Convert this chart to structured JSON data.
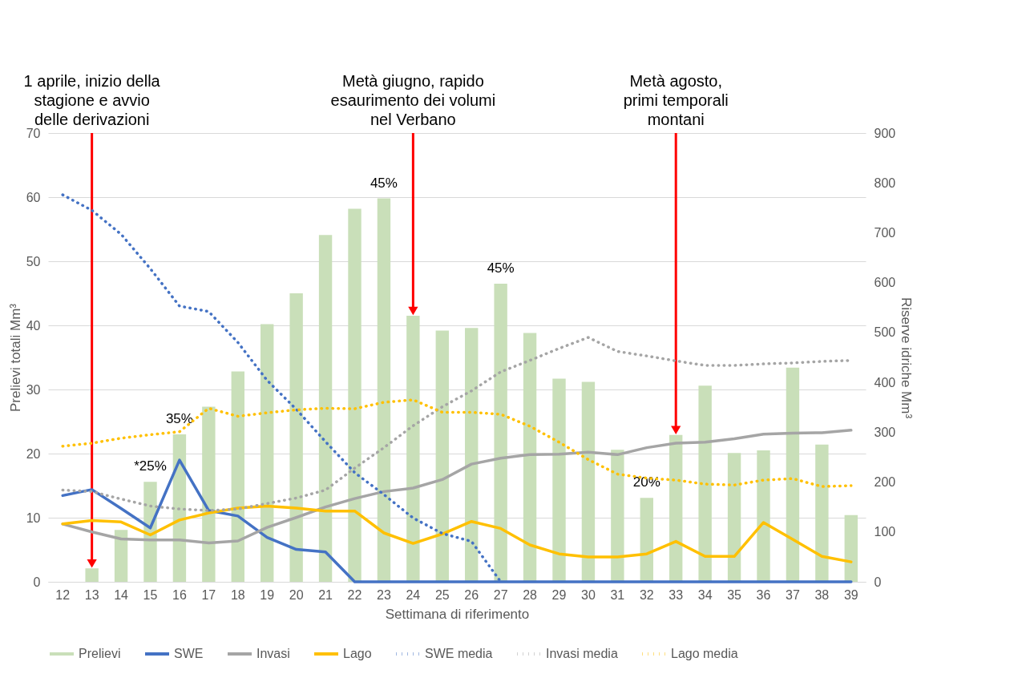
{
  "chart_data": {
    "type": "bar",
    "xlabel": "Settimana di riferimento",
    "ylabel": "Prelievi totali Mm³",
    "y2label": "Riserve idriche Mm³",
    "categories": [
      "12",
      "13",
      "14",
      "15",
      "16",
      "17",
      "18",
      "19",
      "20",
      "21",
      "22",
      "23",
      "24",
      "25",
      "26",
      "27",
      "28",
      "29",
      "30",
      "31",
      "32",
      "33",
      "34",
      "35",
      "36",
      "37",
      "38",
      "39"
    ],
    "series": [
      {
        "name": "Prelievi",
        "color": "#c9dfb9",
        "values": [
          null,
          2.1,
          8.1,
          15.6,
          23.0,
          27.3,
          32.8,
          40.2,
          45.0,
          54.1,
          58.2,
          59.8,
          41.5,
          39.2,
          39.6,
          46.5,
          38.8,
          31.7,
          31.2,
          20.6,
          13.1,
          22.9,
          30.6,
          20.1,
          20.5,
          33.4,
          21.4,
          10.4
        ]
      },
      {
        "name": "SWE",
        "type": "line",
        "axis": "y2",
        "line_style": "solid",
        "color": "#4472c4",
        "values": [
          173,
          185,
          147,
          108,
          244,
          143,
          132,
          89,
          65,
          60,
          0,
          0,
          0,
          0,
          0,
          0,
          0,
          0,
          0,
          0,
          0,
          0,
          0,
          0,
          0,
          0,
          0,
          0
        ]
      },
      {
        "name": "Invasi",
        "type": "line",
        "axis": "y2",
        "line_style": "solid",
        "color": "#a5a5a5",
        "values": [
          116,
          100,
          86,
          84,
          84,
          78,
          82,
          109,
          129,
          150,
          167,
          181,
          188,
          205,
          236,
          248,
          255,
          256,
          260,
          255,
          269,
          278,
          280,
          287,
          296,
          298,
          299,
          304
        ]
      },
      {
        "name": "Lago",
        "type": "line",
        "axis": "y2",
        "line_style": "solid",
        "color": "#ffc000",
        "values": [
          116,
          123,
          120,
          94,
          124,
          138,
          148,
          152,
          148,
          142,
          142,
          98,
          77,
          96,
          121,
          107,
          74,
          56,
          50,
          50,
          56,
          81,
          51,
          51,
          119,
          85,
          51,
          40
        ]
      },
      {
        "name": "SWE media",
        "type": "line",
        "axis": "y2",
        "line_style": "dotted",
        "color": "#4472c4",
        "values": [
          776,
          745,
          697,
          628,
          553,
          542,
          480,
          404,
          346,
          281,
          219,
          175,
          128,
          97,
          81,
          0,
          null,
          null,
          null,
          null,
          null,
          null,
          null,
          null,
          null,
          null,
          null,
          null
        ]
      },
      {
        "name": "Invasi media",
        "type": "line",
        "axis": "y2",
        "line_style": "dotted",
        "color": "#a5a5a5",
        "values": [
          184,
          181,
          166,
          152,
          146,
          143,
          146,
          157,
          168,
          184,
          228,
          269,
          313,
          351,
          383,
          421,
          444,
          468,
          490,
          462,
          453,
          443,
          434,
          434,
          437,
          439,
          442,
          444
        ]
      },
      {
        "name": "Lago media",
        "type": "line",
        "axis": "y2",
        "line_style": "dotted",
        "color": "#ffc000",
        "values": [
          272,
          278,
          288,
          295,
          301,
          348,
          332,
          339,
          345,
          348,
          347,
          360,
          365,
          340,
          340,
          336,
          312,
          280,
          245,
          216,
          208,
          204,
          196,
          194,
          204,
          207,
          191,
          193
        ]
      }
    ],
    "ylim": [
      0,
      70
    ],
    "yticks": [
      0,
      10,
      20,
      30,
      40,
      50,
      60,
      70
    ],
    "y2lim": [
      0,
      900
    ],
    "y2ticks": [
      0,
      100,
      200,
      300,
      400,
      500,
      600,
      700,
      800,
      900
    ],
    "grid": "y",
    "legend": "bottom",
    "annotations": [
      {
        "text": "1 aprile, inizio della\nstagione e avvio\ndelle derivazioni",
        "x": "13",
        "y": 2.1
      },
      {
        "text": "Metà giugno, rapido\nesaurimento dei volumi\nnel Verbano",
        "x": "24",
        "y": 41.5
      },
      {
        "text": "Metà agosto,\nprimi temporali\nmontani",
        "x": "33",
        "y": 22.9
      },
      {
        "text": "*25%",
        "x": "15",
        "y": 15.6
      },
      {
        "text": "35%",
        "x": "16",
        "y": 23.0
      },
      {
        "text": "45%",
        "x": "23",
        "y": 59.8
      },
      {
        "text": "45%",
        "x": "27",
        "y": 46.5
      },
      {
        "text": "20%",
        "x": "32",
        "y": 13.1
      }
    ]
  }
}
